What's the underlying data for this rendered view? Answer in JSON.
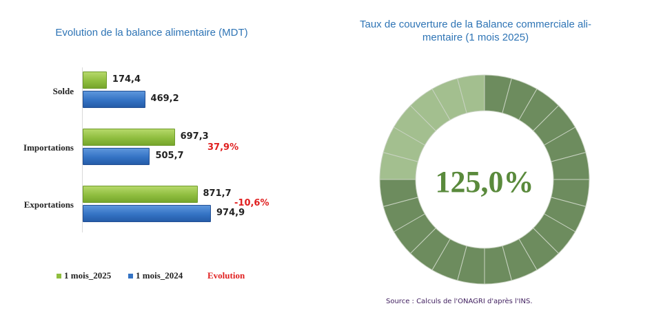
{
  "chart_data": [
    {
      "type": "bar",
      "orientation": "horizontal",
      "title": "Evolution de la balance alimentaire (MDT)",
      "categories": [
        "Solde",
        "Importations",
        "Exportations"
      ],
      "series": [
        {
          "name": "1 mois_2025",
          "values": [
            174.4,
            697.3,
            871.7
          ],
          "labels": [
            "174,4",
            "697,3",
            "871,7"
          ],
          "color": "#8fbe3f"
        },
        {
          "name": "1 mois_2024",
          "values": [
            469.2,
            505.7,
            974.9
          ],
          "labels": [
            "469,2",
            "505,7",
            "974,9"
          ],
          "color": "#3473c4"
        }
      ],
      "evolution": {
        "name": "Evolution",
        "labels": [
          "",
          "37,9%",
          "-10,6%"
        ],
        "color": "#e02020"
      },
      "legend": [
        "1 mois_2025",
        "1 mois_2024",
        "Evolution"
      ],
      "xlim": [
        0,
        1000
      ]
    },
    {
      "type": "pie",
      "variant": "donut",
      "title": "Taux de couverture de la Balance commerciale alimentaire (1 mois 2025)",
      "center_label": "125,0%",
      "value": 125.0,
      "segments": 24,
      "colors": {
        "main": "#6d8c5e",
        "excess": "#a3bf8f",
        "center_text": "#5a8a3c"
      }
    }
  ],
  "footer": {
    "source": "Source : Calculs de l'ONAGRI d'après l'INS."
  }
}
